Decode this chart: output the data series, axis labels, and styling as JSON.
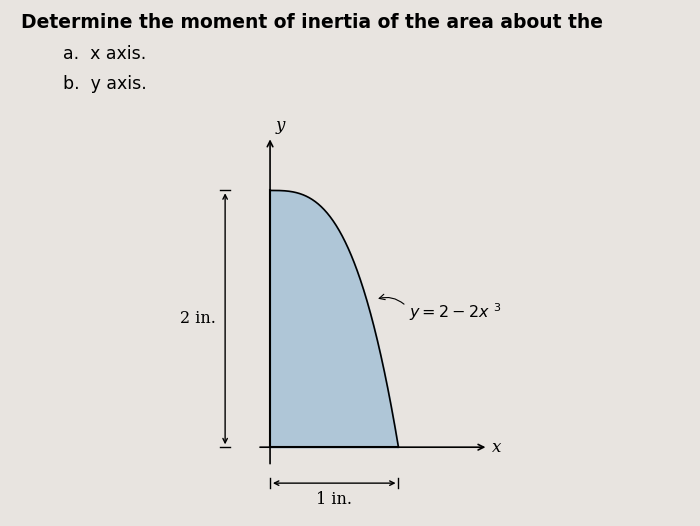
{
  "title": "Determine the moment of inertia of the area about the",
  "subtitle_a": "a.  x axis.",
  "subtitle_b": "b.  y axis.",
  "title_fontsize": 13.5,
  "subtitle_fontsize": 12.5,
  "background_color": "#e8e4e0",
  "box_bg_color": "#dedad6",
  "fill_color": "#9dbcd4",
  "fill_alpha": 0.75,
  "x_label": "x",
  "y_label": "y",
  "dim_label_2in": "2 in.",
  "dim_label_1in": "1 in.",
  "curve_label": "y = 2 − 2x³"
}
